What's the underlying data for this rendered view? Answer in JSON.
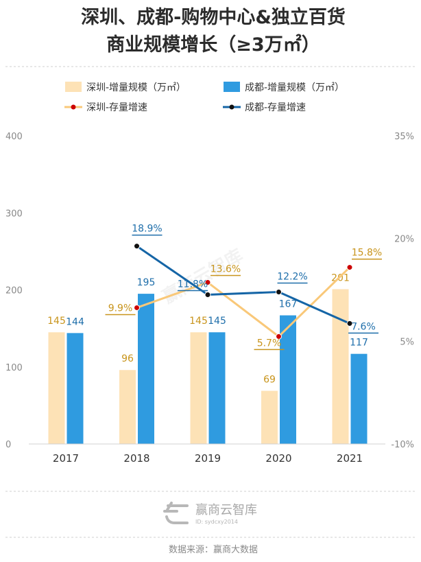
{
  "title_line1": "深圳、成都-购物中心&独立百货",
  "title_line2": "商业规模增长（≥3万㎡）",
  "legend": {
    "sz_bar": "深圳-增量规模（万㎡）",
    "cd_bar": "成都-增量规模（万㎡）",
    "sz_line": "深圳-存量增速",
    "cd_line": "成都-存量增速"
  },
  "colors": {
    "sz_bar": "#fde2b6",
    "cd_bar": "#2f9be0",
    "sz_line": "#f9c879",
    "sz_marker": "#cc0000",
    "cd_line": "#1565a6",
    "sz_label": "#c8941b",
    "cd_label": "#1e6eaa"
  },
  "watermark": "赢商云智库",
  "brand_name": "赢商云智库",
  "brand_id": "ID: sydcxy2014",
  "source": "数据来源：赢商大数据",
  "chart_data": {
    "type": "bar",
    "categories": [
      "2017",
      "2018",
      "2019",
      "2020",
      "2021"
    ],
    "series": [
      {
        "name": "深圳-增量规模（万㎡）",
        "type": "bar",
        "axis": "left",
        "values": [
          145,
          96,
          145,
          69,
          201
        ]
      },
      {
        "name": "成都-增量规模（万㎡）",
        "type": "bar",
        "axis": "left",
        "values": [
          144,
          195,
          145,
          167,
          117
        ]
      },
      {
        "name": "深圳-存量增速",
        "type": "line",
        "axis": "right",
        "values": [
          null,
          9.9,
          13.6,
          5.7,
          15.8
        ],
        "labels": [
          "",
          "9.9%",
          "13.6%",
          "5.7%",
          "15.8%"
        ]
      },
      {
        "name": "成都-存量增速",
        "type": "line",
        "axis": "right",
        "values": [
          null,
          18.9,
          11.8,
          12.2,
          7.6
        ],
        "labels": [
          "",
          "18.9%",
          "11.8%",
          "12.2%",
          "7.6%"
        ]
      }
    ],
    "left_axis": {
      "ticks": [
        "0",
        "100",
        "200",
        "300",
        "400"
      ],
      "ylim": [
        0,
        400
      ]
    },
    "right_axis": {
      "ticks": [
        "-10%",
        "5%",
        "20%",
        "35%"
      ],
      "ylim": [
        -10,
        35
      ]
    },
    "grid": false,
    "legend_position": "top"
  }
}
